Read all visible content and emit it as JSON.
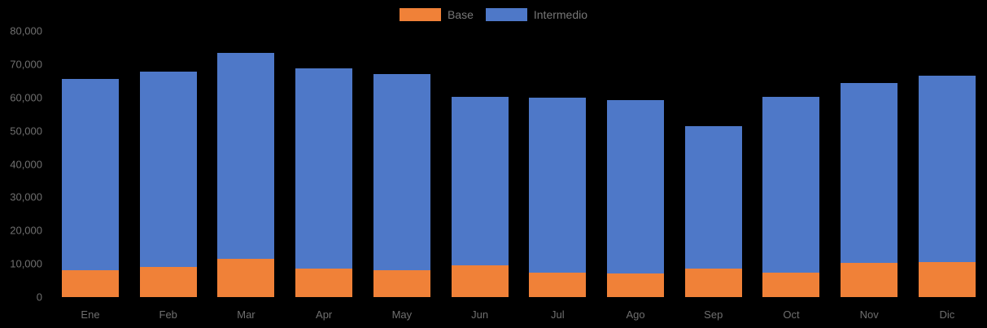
{
  "colors": {
    "background": "#000000",
    "base_series": "#F08138",
    "intermedio_series": "#4E78C8",
    "axis_text": "#6f6f6f",
    "legend_text": "#777777"
  },
  "legend": {
    "items": [
      {
        "label": "Base",
        "series": "Base"
      },
      {
        "label": "Intermedio",
        "series": "Intermedio"
      }
    ]
  },
  "chart_data": {
    "type": "bar",
    "stacked": true,
    "title": "",
    "xlabel": "",
    "ylabel": "",
    "categories": [
      "Ene",
      "Feb",
      "Mar",
      "Apr",
      "May",
      "Jun",
      "Jul",
      "Ago",
      "Sep",
      "Oct",
      "Nov",
      "Dic"
    ],
    "series": [
      {
        "name": "Base",
        "color": "#F08138",
        "values": [
          8000,
          9000,
          11400,
          8600,
          8100,
          9500,
          7300,
          7100,
          8600,
          7300,
          10300,
          10600
        ]
      },
      {
        "name": "Intermedio",
        "color": "#4E78C8",
        "values": [
          57500,
          58800,
          62000,
          60100,
          58900,
          50700,
          52600,
          52200,
          42800,
          52900,
          54100,
          56000
        ]
      }
    ],
    "stacked_totals": [
      65500,
      67800,
      73400,
      68700,
      67000,
      60200,
      59900,
      59300,
      51400,
      60200,
      64400,
      66600
    ],
    "ylim": [
      0,
      80000
    ],
    "ytick_interval": 10000,
    "ytick_values": [
      0,
      10000,
      20000,
      30000,
      40000,
      50000,
      60000,
      70000,
      80000
    ],
    "ytick_labels": [
      "0",
      "10,000",
      "20,000",
      "30,000",
      "40,000",
      "50,000",
      "60,000",
      "70,000",
      "80,000"
    ],
    "grid": false,
    "legend_position": "top-center"
  }
}
